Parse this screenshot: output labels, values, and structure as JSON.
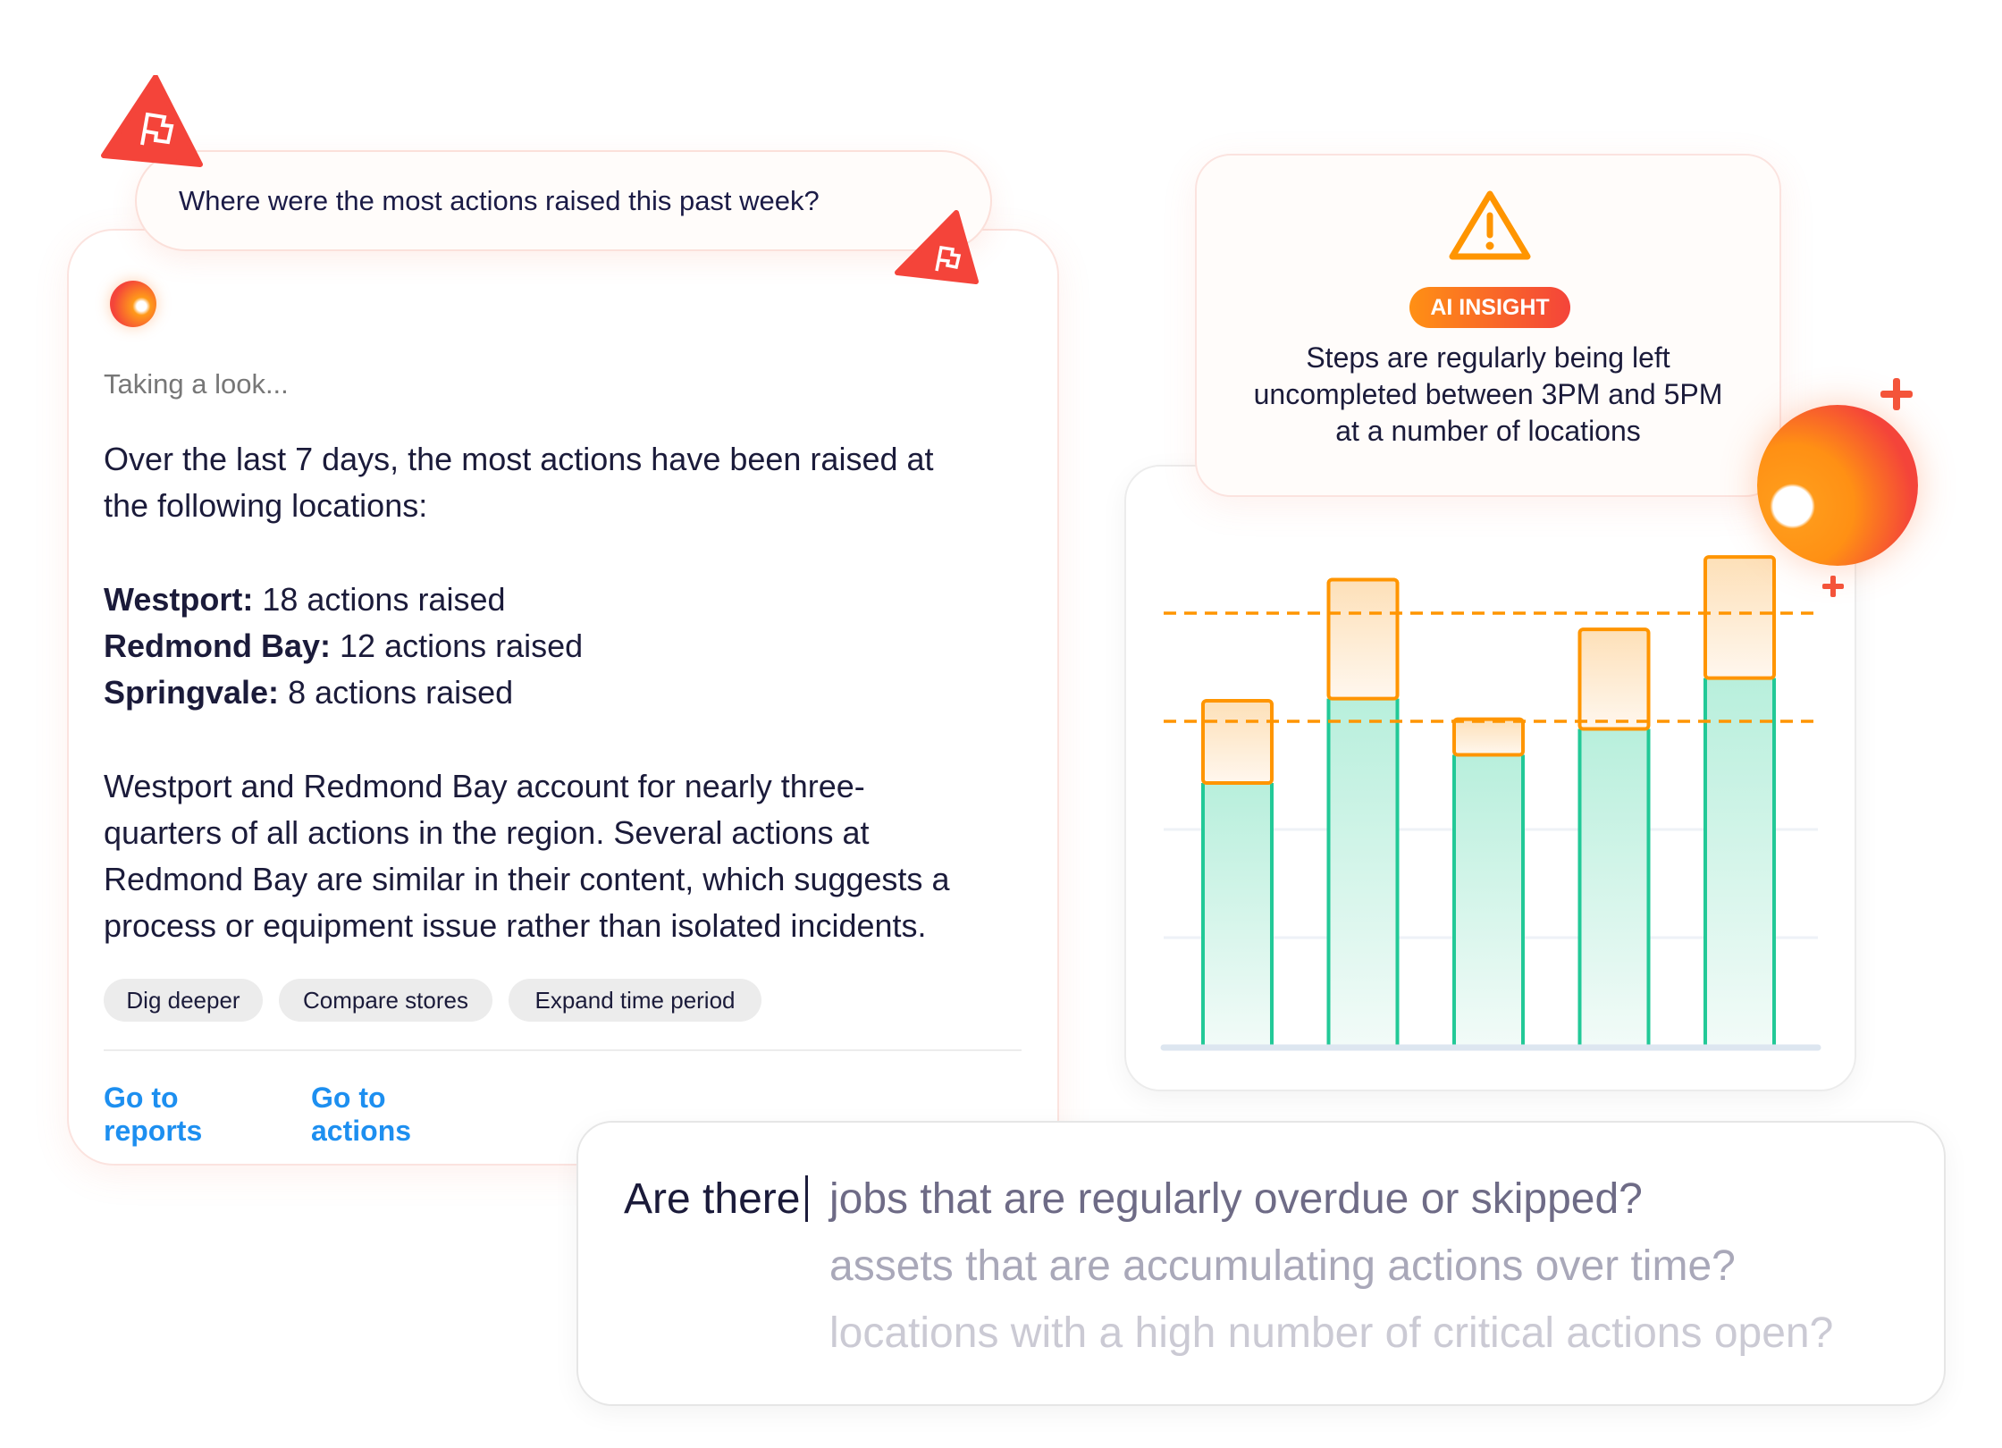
{
  "question": "Where were the most actions raised this past week?",
  "response": {
    "status": "Taking a look...",
    "intro_lines": [
      "Over the last 7 days, the most actions have been raised at",
      "the following locations:"
    ],
    "locations": [
      {
        "name": "Westport:",
        "detail": " 18 actions raised"
      },
      {
        "name": "Redmond Bay:",
        "detail": " 12 actions raised"
      },
      {
        "name": "Springvale:",
        "detail": " 8 actions raised"
      }
    ],
    "summary_lines": [
      "Westport and Redmond Bay account for nearly three-",
      "quarters of all actions in the region. Several actions at",
      "Redmond Bay are similar in their content, which suggests a",
      "process or equipment issue rather than isolated incidents."
    ],
    "chips": [
      "Dig deeper",
      "Compare stores",
      "Expand time period"
    ],
    "links": [
      "Go to reports",
      "Go to actions"
    ]
  },
  "insight": {
    "badge": "AI INSIGHT",
    "icon": "warning-icon",
    "lines": [
      "Steps are regularly being left",
      "uncompleted between 3PM and 5PM",
      "at a number of locations"
    ]
  },
  "prompt": {
    "typed": "Are there",
    "suggestions": [
      "jobs that are regularly overdue or skipped?",
      "assets that are accumulating actions over time?",
      "locations with a high number of critical actions open?"
    ]
  },
  "colors": {
    "accent_orange": "#ff9500",
    "accent_red": "#f4443a",
    "bar_green": "#22c997",
    "link_blue": "#1d8ff0"
  },
  "chart_data": {
    "type": "bar",
    "stacked": true,
    "grid": true,
    "categories": [
      "1",
      "2",
      "3",
      "4",
      "5"
    ],
    "series": [
      {
        "values": [
          2.43,
          3.21,
          2.69,
          2.93,
          3.4
        ],
        "color": "#22c997"
      },
      {
        "values": [
          0.76,
          1.1,
          0.33,
          0.92,
          1.12
        ],
        "color": "#ff9500"
      }
    ],
    "reference_lines": [
      3,
      4
    ],
    "ylim": [
      0,
      4.6
    ]
  }
}
